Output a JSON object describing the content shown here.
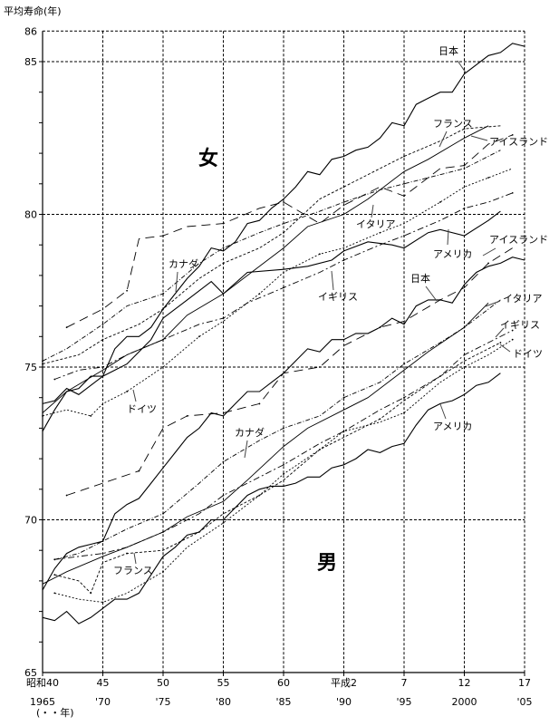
{
  "chart_data": {
    "type": "line",
    "title": "",
    "ylabel": "平均寿命(年)",
    "xlabel": "(・・年)",
    "ylim": [
      65,
      86
    ],
    "xlim": [
      1965,
      2005
    ],
    "grid": true,
    "y_ticks": [
      "65",
      "70",
      "75",
      "80",
      "85",
      "86"
    ],
    "y_tick_values": [
      65,
      70,
      75,
      80,
      85,
      86
    ],
    "x_tick_values": [
      1965,
      1970,
      1975,
      1980,
      1985,
      1990,
      1995,
      2000,
      2005
    ],
    "x_ticks_era": [
      "昭和40",
      "45",
      "50",
      "55",
      "60",
      "平成2",
      "7",
      "12",
      "17"
    ],
    "x_ticks_year": [
      "1965",
      "'70",
      "'75",
      "'80",
      "'85",
      "'90",
      "'95",
      "2000",
      "'05"
    ],
    "panel_labels": {
      "female": "女",
      "male": "男"
    },
    "series": [
      {
        "name": "日本",
        "sex": "女",
        "x": [
          1965,
          1966,
          1967,
          1968,
          1969,
          1970,
          1971,
          1972,
          1973,
          1974,
          1975,
          1976,
          1977,
          1978,
          1979,
          1980,
          1981,
          1982,
          1983,
          1984,
          1985,
          1986,
          1987,
          1988,
          1989,
          1990,
          1991,
          1992,
          1993,
          1994,
          1995,
          1996,
          1997,
          1998,
          1999,
          2000,
          2001,
          2002,
          2003,
          2004,
          2005
        ],
        "values": [
          72.9,
          73.6,
          74.2,
          74.3,
          74.7,
          74.7,
          75.6,
          76.0,
          76.0,
          76.3,
          76.9,
          77.4,
          77.9,
          78.3,
          78.9,
          78.8,
          79.1,
          79.7,
          79.8,
          80.2,
          80.5,
          80.9,
          81.4,
          81.3,
          81.8,
          81.9,
          82.1,
          82.2,
          82.5,
          83.0,
          82.9,
          83.6,
          83.8,
          84.0,
          84.0,
          84.6,
          84.9,
          85.2,
          85.3,
          85.6,
          85.5
        ]
      },
      {
        "name": "フランス",
        "sex": "女",
        "x": [
          1965,
          1968,
          1970,
          1973,
          1975,
          1978,
          1980,
          1983,
          1985,
          1988,
          1990,
          1993,
          1995,
          1998,
          2000,
          2003
        ],
        "values": [
          75.1,
          75.4,
          75.9,
          76.4,
          76.9,
          77.9,
          78.4,
          78.9,
          79.4,
          80.5,
          80.9,
          81.5,
          81.9,
          82.4,
          82.8,
          82.9
        ]
      },
      {
        "name": "アイスランド",
        "sex": "女",
        "x": [
          1967,
          1970,
          1972,
          1973,
          1975,
          1977,
          1980,
          1983,
          1985,
          1988,
          1990,
          1993,
          1995,
          1998,
          2000,
          2002,
          2004
        ],
        "values": [
          76.3,
          76.9,
          77.5,
          79.2,
          79.3,
          79.6,
          79.7,
          80.2,
          80.4,
          79.7,
          80.3,
          80.9,
          80.6,
          81.5,
          81.6,
          82.3,
          82.6
        ]
      },
      {
        "name": "イタリア",
        "sex": "女",
        "x": [
          1965,
          1967,
          1970,
          1972,
          1975,
          1977,
          1980,
          1982,
          1985,
          1987,
          1990,
          1992,
          1995,
          1997,
          2000,
          2002
        ],
        "values": [
          73.5,
          74.2,
          74.9,
          75.4,
          75.9,
          76.7,
          77.4,
          78.0,
          78.9,
          79.6,
          80.0,
          80.5,
          81.4,
          81.8,
          82.5,
          82.9
        ]
      },
      {
        "name": "アメリカ",
        "sex": "女",
        "x": [
          1965,
          1966,
          1967,
          1968,
          1969,
          1970,
          1972,
          1974,
          1975,
          1977,
          1979,
          1980,
          1982,
          1985,
          1987,
          1989,
          1990,
          1992,
          1994,
          1995,
          1997,
          1998,
          2000,
          2002,
          2003
        ],
        "values": [
          73.8,
          73.9,
          74.3,
          74.1,
          74.4,
          74.7,
          75.1,
          75.9,
          76.6,
          77.2,
          77.8,
          77.4,
          78.1,
          78.2,
          78.3,
          78.5,
          78.8,
          79.1,
          79.0,
          78.9,
          79.4,
          79.5,
          79.3,
          79.8,
          80.1
        ]
      },
      {
        "name": "イギリス",
        "sex": "女",
        "x": [
          1966,
          1968,
          1970,
          1972,
          1975,
          1978,
          1980,
          1982,
          1985,
          1988,
          1990,
          1993,
          1995,
          1998,
          2000,
          2002,
          2004
        ],
        "values": [
          74.6,
          74.9,
          75.0,
          75.4,
          75.9,
          76.4,
          76.6,
          77.1,
          77.6,
          78.1,
          78.5,
          79.0,
          79.3,
          79.8,
          80.2,
          80.4,
          80.7
        ]
      },
      {
        "name": "カナダ",
        "sex": "女",
        "x": [
          1965,
          1967,
          1970,
          1972,
          1975,
          1978,
          1980,
          1983,
          1985,
          1988,
          1990,
          1993,
          1995,
          1998,
          2000,
          2003
        ],
        "values": [
          75.2,
          75.6,
          76.4,
          77.0,
          77.4,
          78.4,
          78.9,
          79.4,
          79.7,
          80.1,
          80.4,
          80.8,
          81.0,
          81.3,
          81.5,
          82.1
        ]
      },
      {
        "name": "ドイツ",
        "sex": "女",
        "x": [
          1965,
          1967,
          1969,
          1970,
          1972,
          1975,
          1978,
          1980,
          1983,
          1985,
          1988,
          1990,
          1993,
          1995,
          1998,
          2000,
          2002,
          2004
        ],
        "values": [
          73.4,
          73.6,
          73.4,
          73.8,
          74.2,
          75.0,
          76.0,
          76.5,
          77.4,
          78.1,
          78.7,
          78.9,
          79.4,
          79.7,
          80.4,
          80.9,
          81.2,
          81.5
        ]
      },
      {
        "name": "アイスランド",
        "sex": "男",
        "x": [
          1967,
          1970,
          1973,
          1975,
          1977,
          1980,
          1983,
          1985,
          1988,
          1990,
          1993,
          1995,
          1998,
          2000,
          2002,
          2004
        ],
        "values": [
          70.8,
          71.2,
          71.6,
          73.0,
          73.4,
          73.5,
          73.8,
          74.8,
          75.0,
          75.7,
          76.3,
          76.5,
          77.2,
          77.6,
          78.4,
          78.9
        ]
      },
      {
        "name": "日本",
        "sex": "男",
        "x": [
          1965,
          1966,
          1967,
          1968,
          1969,
          1970,
          1971,
          1972,
          1973,
          1974,
          1975,
          1976,
          1977,
          1978,
          1979,
          1980,
          1981,
          1982,
          1983,
          1984,
          1985,
          1986,
          1987,
          1988,
          1989,
          1990,
          1991,
          1992,
          1993,
          1994,
          1995,
          1996,
          1997,
          1998,
          1999,
          2000,
          2001,
          2002,
          2003,
          2004,
          2005
        ],
        "values": [
          67.7,
          68.4,
          68.9,
          69.1,
          69.2,
          69.3,
          70.2,
          70.5,
          70.7,
          71.2,
          71.7,
          72.2,
          72.7,
          73.0,
          73.5,
          73.4,
          73.8,
          74.2,
          74.2,
          74.5,
          74.8,
          75.2,
          75.6,
          75.5,
          75.9,
          75.9,
          76.1,
          76.1,
          76.3,
          76.6,
          76.4,
          77.0,
          77.2,
          77.2,
          77.1,
          77.7,
          78.1,
          78.3,
          78.4,
          78.6,
          78.5
        ]
      },
      {
        "name": "イタリア",
        "sex": "男",
        "x": [
          1965,
          1967,
          1970,
          1972,
          1975,
          1977,
          1980,
          1982,
          1985,
          1987,
          1990,
          1992,
          1995,
          1997,
          2000,
          2002
        ],
        "values": [
          67.9,
          68.3,
          68.8,
          69.1,
          69.6,
          70.1,
          70.6,
          71.3,
          72.4,
          73.0,
          73.6,
          74.0,
          74.9,
          75.5,
          76.3,
          77.1
        ]
      },
      {
        "name": "イギリス",
        "sex": "男",
        "x": [
          1966,
          1968,
          1970,
          1972,
          1975,
          1978,
          1980,
          1982,
          1985,
          1988,
          1990,
          1993,
          1995,
          1998,
          2000,
          2002,
          2004
        ],
        "values": [
          68.7,
          68.8,
          68.9,
          69.1,
          69.6,
          70.2,
          70.8,
          71.2,
          71.8,
          72.5,
          72.9,
          73.6,
          74.0,
          74.7,
          75.4,
          75.8,
          76.2
        ]
      },
      {
        "name": "ドイツ",
        "sex": "男",
        "x": [
          1966,
          1968,
          1970,
          1972,
          1975,
          1977,
          1980,
          1983,
          1985,
          1988,
          1990,
          1993,
          1995,
          1998,
          2000,
          2002,
          2004
        ],
        "values": [
          67.6,
          67.4,
          67.3,
          67.6,
          68.3,
          69.1,
          69.9,
          70.8,
          71.5,
          72.3,
          72.9,
          73.2,
          73.5,
          74.5,
          75.0,
          75.4,
          75.9
        ]
      },
      {
        "name": "アメリカ",
        "sex": "男",
        "x": [
          1965,
          1966,
          1967,
          1968,
          1969,
          1970,
          1971,
          1972,
          1973,
          1974,
          1975,
          1976,
          1977,
          1978,
          1979,
          1980,
          1981,
          1982,
          1983,
          1984,
          1985,
          1986,
          1987,
          1988,
          1989,
          1990,
          1991,
          1992,
          1993,
          1994,
          1995,
          1996,
          1997,
          1998,
          1999,
          2000,
          2001,
          2002,
          2003
        ],
        "values": [
          66.8,
          66.7,
          67.0,
          66.6,
          66.8,
          67.1,
          67.4,
          67.4,
          67.6,
          68.2,
          68.8,
          69.1,
          69.5,
          69.6,
          70.0,
          70.0,
          70.4,
          70.8,
          71.0,
          71.1,
          71.1,
          71.2,
          71.4,
          71.4,
          71.7,
          71.8,
          72.0,
          72.3,
          72.2,
          72.4,
          72.5,
          73.1,
          73.6,
          73.8,
          73.9,
          74.1,
          74.4,
          74.5,
          74.8
        ]
      },
      {
        "name": "カナダ",
        "sex": "男",
        "x": [
          1966,
          1968,
          1970,
          1972,
          1975,
          1978,
          1980,
          1983,
          1985,
          1988,
          1990,
          1993,
          1995,
          1998,
          2000,
          2003
        ],
        "values": [
          68.7,
          68.9,
          69.3,
          69.7,
          70.2,
          71.2,
          71.9,
          72.6,
          73.0,
          73.4,
          74.0,
          74.5,
          75.1,
          75.8,
          76.3,
          77.2
        ]
      },
      {
        "name": "フランス",
        "sex": "男",
        "x": [
          1966,
          1968,
          1969,
          1970,
          1972,
          1975,
          1978,
          1980,
          1983,
          1985,
          1988,
          1990,
          1993,
          1995,
          1998,
          2000,
          2003
        ],
        "values": [
          68.2,
          68.0,
          67.6,
          68.6,
          68.9,
          69.0,
          69.6,
          70.2,
          70.8,
          71.3,
          72.3,
          72.7,
          73.3,
          73.9,
          74.7,
          75.2,
          75.8
        ]
      }
    ],
    "annotations": [
      "日本",
      "フランス",
      "アイスランド",
      "イタリア",
      "アメリカ",
      "アイスランド",
      "日本",
      "カナダ",
      "イギリス",
      "イタリア",
      "イギリス",
      "ドイツ",
      "ドイツ",
      "アメリカ",
      "カナダ",
      "フランス"
    ]
  }
}
